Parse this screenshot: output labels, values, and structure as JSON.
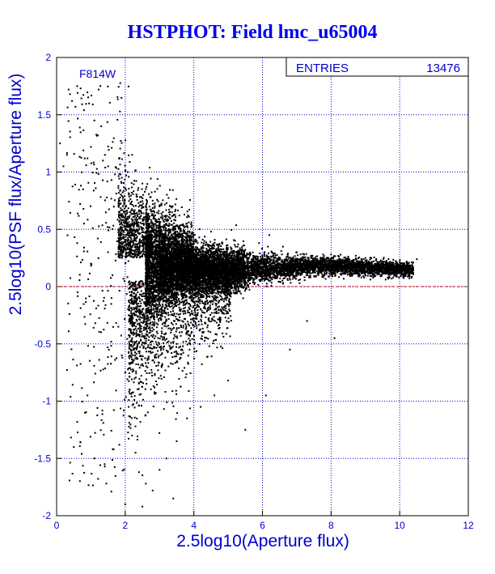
{
  "chart_data": {
    "type": "scatter",
    "title": "HSTPHOT: Field lmc_u65004",
    "xlabel": "2.5log10(Aperture flux)",
    "ylabel": "2.5log10(PSF flux/Aperture flux)",
    "xlim": [
      0,
      12
    ],
    "ylim": [
      -2,
      2
    ],
    "x_ticks": [
      "0",
      "2",
      "4",
      "6",
      "8",
      "10",
      "12"
    ],
    "y_ticks": [
      "-2",
      "-1.5",
      "-1",
      "-0.5",
      "0",
      "0.5",
      "1",
      "1.5",
      "2"
    ],
    "grid": true,
    "reference_line": {
      "y": 0,
      "style": "dashed",
      "color": "#cc0000"
    },
    "filter_label": "F814W",
    "stats_box": {
      "label": "ENTRIES",
      "value": "13476",
      "placement": "top-right"
    },
    "series": [
      {
        "color": "#000000",
        "points": [
          [
            0.1,
            1.25
          ],
          [
            0.2,
            1.05
          ],
          [
            0.3,
            1.15
          ],
          [
            0.35,
            1.72
          ],
          [
            0.45,
            1.62
          ],
          [
            0.55,
            1.57
          ],
          [
            0.6,
            1.75
          ],
          [
            0.7,
            1.73
          ],
          [
            0.8,
            1.54
          ],
          [
            0.9,
            1.12
          ],
          [
            1.0,
            1.22
          ],
          [
            1.1,
            1.45
          ],
          [
            1.2,
            1.32
          ],
          [
            1.3,
            1.4
          ],
          [
            1.35,
            1.1
          ],
          [
            1.5,
            1.05
          ],
          [
            1.6,
            0.93
          ],
          [
            1.7,
            0.98
          ],
          [
            1.8,
            0.86
          ],
          [
            1.9,
            0.95
          ],
          [
            0.8,
            0.55
          ],
          [
            1.2,
            0.42
          ],
          [
            1.5,
            0.3
          ],
          [
            0.6,
            0.38
          ],
          [
            1.0,
            0.2
          ],
          [
            1.6,
            -0.1
          ],
          [
            1.8,
            -0.35
          ],
          [
            1.9,
            -0.6
          ],
          [
            2.0,
            -0.75
          ],
          [
            2.1,
            -1.05
          ],
          [
            2.2,
            -1.3
          ],
          [
            2.3,
            -1.45
          ],
          [
            2.4,
            -1.62
          ],
          [
            2.6,
            -1.72
          ],
          [
            2.8,
            -1.78
          ],
          [
            3.0,
            -1.6
          ],
          [
            3.2,
            -1.5
          ],
          [
            3.5,
            -1.35
          ],
          [
            3.8,
            -1.15
          ],
          [
            4.2,
            -1.05
          ],
          [
            4.6,
            -0.95
          ],
          [
            5.0,
            -0.82
          ],
          [
            5.5,
            -1.25
          ],
          [
            6.1,
            -0.95
          ],
          [
            6.8,
            -0.55
          ],
          [
            7.3,
            -0.3
          ],
          [
            8.1,
            -0.45
          ],
          [
            0.9,
            -0.95
          ],
          [
            1.4,
            -1.55
          ],
          [
            0.5,
            -1.4
          ],
          [
            2.0,
            -1.9
          ],
          [
            3.4,
            -1.85
          ],
          [
            1.1,
            -1.5
          ],
          [
            2.5,
            -1.92
          ],
          [
            2.2,
            1.15
          ],
          [
            2.5,
            0.9
          ],
          [
            2.8,
            0.75
          ],
          [
            3.0,
            0.7
          ],
          [
            3.4,
            0.62
          ],
          [
            3.8,
            0.55
          ],
          [
            4.5,
            0.48
          ],
          [
            5.2,
            0.4
          ],
          [
            5.9,
            0.38
          ],
          [
            6.2,
            0.45
          ],
          [
            7.0,
            0.3
          ],
          [
            8.0,
            0.28
          ],
          [
            9.0,
            0.25
          ],
          [
            9.5,
            0.22
          ],
          [
            10.1,
            0.2
          ],
          [
            10.3,
            0.18
          ],
          [
            10.5,
            0.24
          ]
        ]
      }
    ]
  }
}
